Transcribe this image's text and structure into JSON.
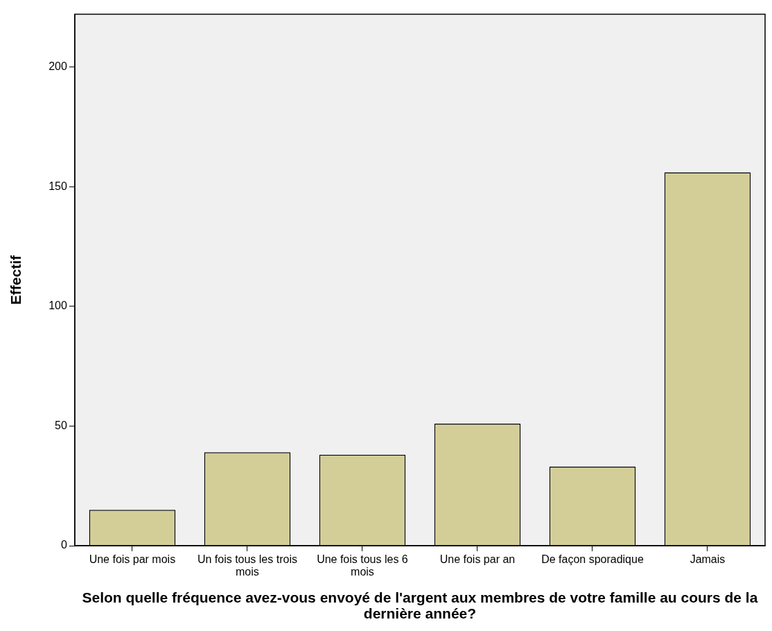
{
  "chart_data": {
    "type": "bar",
    "xlabel": "Selon quelle fréquence avez-vous envoyé de l'argent aux membres de votre famille au cours de la dernière année?",
    "ylabel": "Effectif",
    "categories": [
      "Une fois par mois",
      "Un fois tous les trois mois",
      "Une fois tous les 6 mois",
      "Une fois par an",
      "De façon sporadique",
      "Jamais"
    ],
    "values": [
      15,
      39,
      38,
      51,
      33,
      156
    ],
    "color": "#d3ce97",
    "ylim": [
      0,
      222
    ],
    "yticks": [
      0,
      50,
      100,
      150,
      200
    ],
    "grid": false,
    "legend": false
  }
}
